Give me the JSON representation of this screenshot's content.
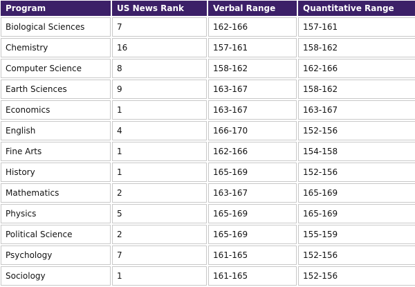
{
  "table": {
    "headers": [
      "Program",
      "US News Rank",
      "Verbal Range",
      "Quantitative Range"
    ],
    "rows": [
      [
        "Biological Sciences",
        "7",
        "162-166",
        "157-161"
      ],
      [
        "Chemistry",
        "16",
        "157-161",
        "158-162"
      ],
      [
        "Computer Science",
        "8",
        "158-162",
        "162-166"
      ],
      [
        "Earth Sciences",
        "9",
        "163-167",
        "158-162"
      ],
      [
        "Economics",
        "1",
        "163-167",
        "163-167"
      ],
      [
        "English",
        "4",
        "166-170",
        "152-156"
      ],
      [
        "Fine Arts",
        "1",
        "162-166",
        "154-158"
      ],
      [
        "History",
        "1",
        "165-169",
        "152-156"
      ],
      [
        "Mathematics",
        "2",
        "163-167",
        "165-169"
      ],
      [
        "Physics",
        "5",
        "165-169",
        "165-169"
      ],
      [
        "Political Science",
        "2",
        "165-169",
        "155-159"
      ],
      [
        "Psychology",
        "7",
        "161-165",
        "152-156"
      ],
      [
        "Sociology",
        "1",
        "161-165",
        "152-156"
      ]
    ]
  },
  "colors": {
    "header_bg": "#3c2068",
    "header_text": "#ffffff",
    "cell_border": "#c8c8c8"
  }
}
